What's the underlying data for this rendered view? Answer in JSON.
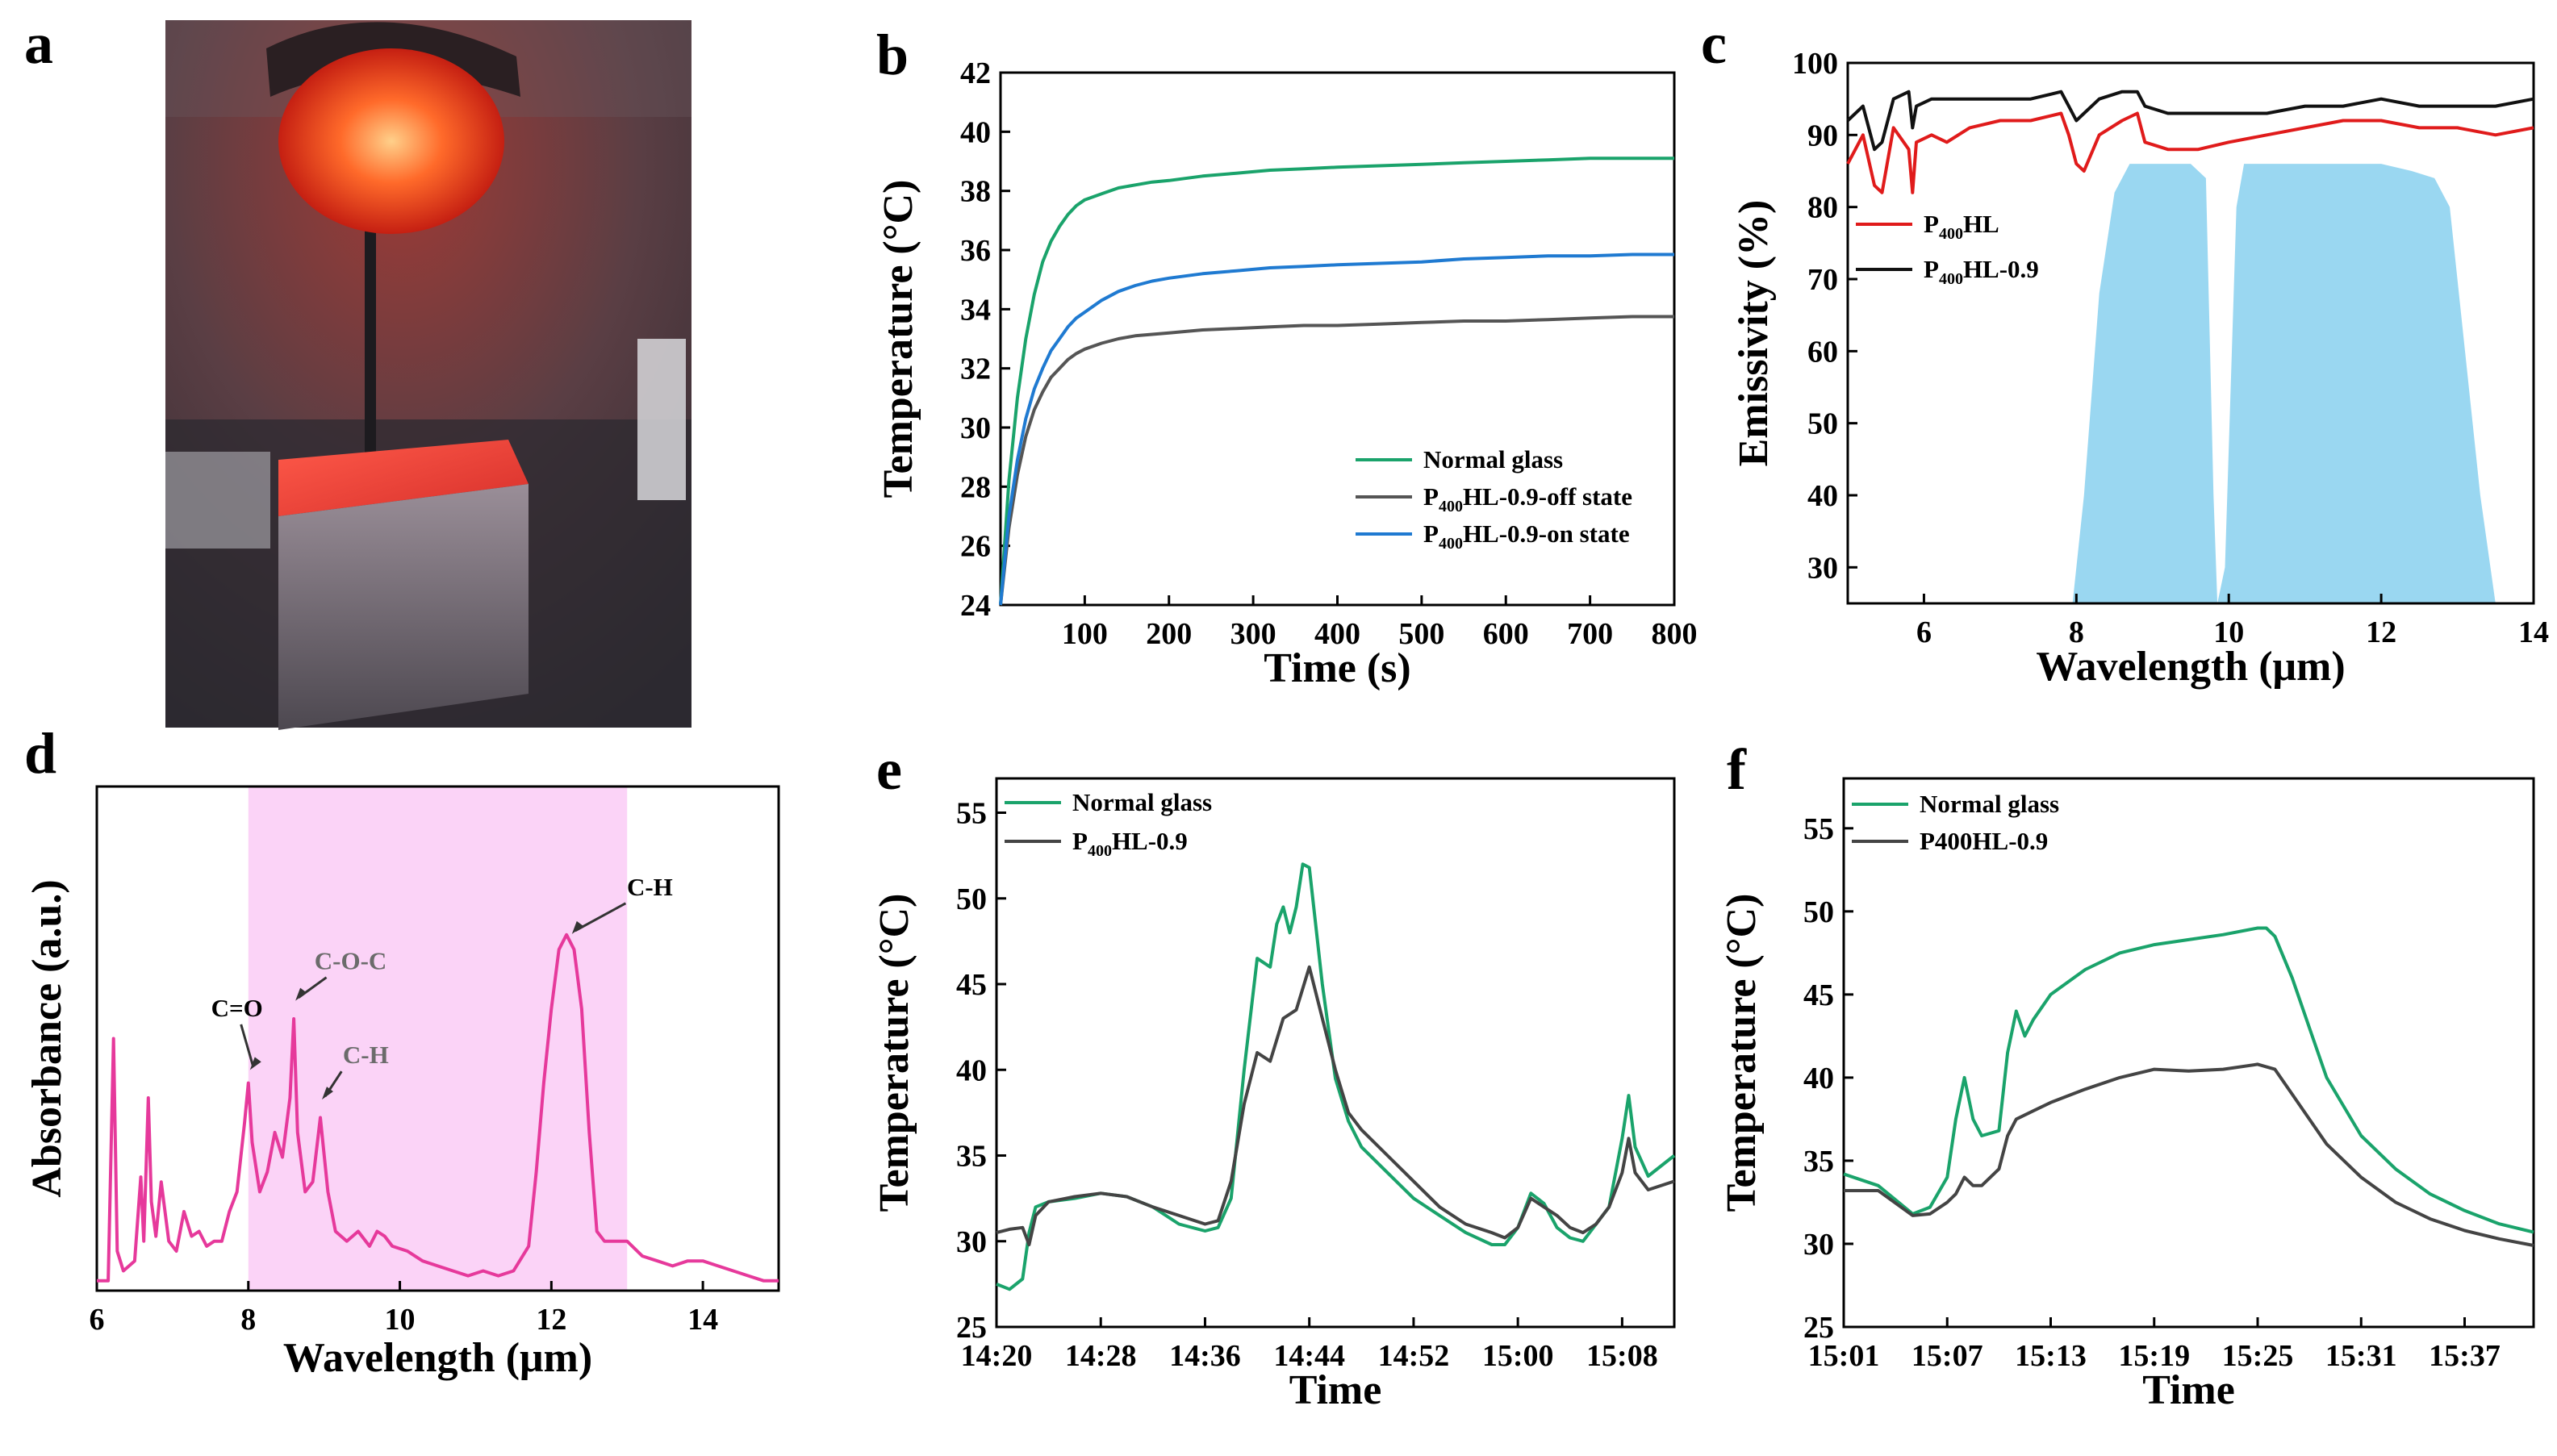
{
  "panels": {
    "a": {
      "letter": "a",
      "photo_caption": "",
      "colors": {
        "background": "#4a3b3c",
        "lamp": "#e8341c",
        "glow": "#ff6a3a",
        "foil": "#8e8c92"
      }
    },
    "b": {
      "letter": "b",
      "chart_kind": "line"
    },
    "c": {
      "letter": "c",
      "chart_kind": "line"
    },
    "d": {
      "letter": "d",
      "chart_kind": "line",
      "annotations": [
        {
          "label": "C=O",
          "x": 8.0,
          "y": 0.42,
          "label_x": 7.85,
          "label_y": 0.535,
          "color": "#000000"
        },
        {
          "label": "C-O-C",
          "x": 8.6,
          "y": 0.56,
          "label_x": 9.35,
          "label_y": 0.63,
          "color": "#6b6b6b"
        },
        {
          "label": "C-H",
          "x": 8.95,
          "y": 0.36,
          "label_x": 9.55,
          "label_y": 0.44,
          "color": "#6b6b6b"
        },
        {
          "label": "C-H",
          "x": 12.25,
          "y": 0.695,
          "label_x": 13.3,
          "label_y": 0.78,
          "color": "#000000"
        }
      ]
    },
    "e": {
      "letter": "e",
      "chart_kind": "line"
    },
    "f": {
      "letter": "f",
      "chart_kind": "line"
    }
  },
  "chart_data": [
    {
      "id": "b",
      "type": "line",
      "title": "",
      "xlabel": "Time (s)",
      "ylabel": "Temperature (°C)",
      "xlim": [
        0,
        800
      ],
      "ylim": [
        24,
        42
      ],
      "xticks": [
        100,
        200,
        300,
        400,
        500,
        600,
        700,
        800
      ],
      "yticks": [
        24,
        26,
        28,
        30,
        32,
        34,
        36,
        38,
        40,
        42
      ],
      "x": [
        0,
        10,
        20,
        30,
        40,
        50,
        60,
        70,
        80,
        90,
        100,
        120,
        140,
        160,
        180,
        200,
        240,
        280,
        320,
        360,
        400,
        450,
        500,
        550,
        600,
        650,
        700,
        750,
        800
      ],
      "legend_position": "bottom-right",
      "series": [
        {
          "name": "Normal glass",
          "sub": "",
          "prefix": "Normal glass",
          "suffix": "",
          "color": "#1aa36b",
          "values": [
            24.0,
            28.2,
            31.0,
            33.0,
            34.5,
            35.6,
            36.3,
            36.8,
            37.2,
            37.5,
            37.7,
            37.9,
            38.1,
            38.2,
            38.3,
            38.35,
            38.5,
            38.6,
            38.7,
            38.75,
            38.8,
            38.85,
            38.9,
            38.95,
            39.0,
            39.05,
            39.1,
            39.1,
            39.1
          ]
        },
        {
          "name": "P400HL-0.9-off state",
          "prefix": "P",
          "sub": "400",
          "suffix": "HL-0.9-off state",
          "color": "#555555",
          "values": [
            24.0,
            26.6,
            28.4,
            29.7,
            30.6,
            31.2,
            31.7,
            32.0,
            32.3,
            32.5,
            32.65,
            32.85,
            33.0,
            33.1,
            33.15,
            33.2,
            33.3,
            33.35,
            33.4,
            33.45,
            33.45,
            33.5,
            33.55,
            33.6,
            33.6,
            33.65,
            33.7,
            33.75,
            33.75
          ]
        },
        {
          "name": "P400HL-0.9-on state",
          "prefix": "P",
          "sub": "400",
          "suffix": "HL-0.9-on state",
          "color": "#1f7ad1",
          "values": [
            24.0,
            27.0,
            28.9,
            30.3,
            31.3,
            32.0,
            32.6,
            33.0,
            33.4,
            33.7,
            33.9,
            34.3,
            34.6,
            34.8,
            34.95,
            35.05,
            35.2,
            35.3,
            35.4,
            35.45,
            35.5,
            35.55,
            35.6,
            35.7,
            35.75,
            35.8,
            35.8,
            35.85,
            35.85
          ]
        }
      ]
    },
    {
      "id": "c",
      "type": "line",
      "title": "",
      "xlabel": "Wavelength (μm)",
      "ylabel": "Emissivity (%)",
      "xlim": [
        5,
        14
      ],
      "ylim": [
        25,
        100
      ],
      "xticks": [
        6,
        8,
        10,
        12,
        14
      ],
      "yticks": [
        30,
        40,
        50,
        60,
        70,
        80,
        90,
        100
      ],
      "legend_position": "center-left",
      "atmospheric_window": {
        "color": "#8fd3f0",
        "x": [
          7.95,
          8.1,
          8.3,
          8.5,
          8.7,
          8.9,
          9.2,
          9.5,
          9.7,
          9.8,
          9.85,
          9.95,
          10.1,
          10.2,
          10.4,
          10.8,
          11.2,
          11.6,
          12.0,
          12.4,
          12.7,
          12.9,
          13.1,
          13.3,
          13.5
        ],
        "values": [
          25,
          40,
          68,
          82,
          86,
          86,
          86,
          86,
          84,
          40,
          25,
          30,
          80,
          86,
          86,
          86,
          86,
          86,
          86,
          85,
          84,
          80,
          60,
          40,
          25
        ]
      },
      "series": [
        {
          "name": "P400HL",
          "prefix": "P",
          "sub": "400",
          "suffix": "HL",
          "color": "#e01b1b",
          "x": [
            5.0,
            5.2,
            5.35,
            5.45,
            5.6,
            5.8,
            5.85,
            5.9,
            6.1,
            6.3,
            6.6,
            7.0,
            7.4,
            7.8,
            7.9,
            8.0,
            8.1,
            8.3,
            8.6,
            8.8,
            8.9,
            9.2,
            9.6,
            10.0,
            10.5,
            11.0,
            11.5,
            12.0,
            12.5,
            13.0,
            13.5,
            14.0
          ],
          "values": [
            86,
            90,
            83,
            82,
            91,
            88,
            82,
            89,
            90,
            89,
            91,
            92,
            92,
            93,
            90,
            86,
            85,
            90,
            92,
            93,
            89,
            88,
            88,
            89,
            90,
            91,
            92,
            92,
            91,
            91,
            90,
            91
          ]
        },
        {
          "name": "P400HL-0.9",
          "prefix": "P",
          "sub": "400",
          "suffix": "HL-0.9",
          "color": "#111111",
          "x": [
            5.0,
            5.2,
            5.35,
            5.45,
            5.6,
            5.8,
            5.85,
            5.9,
            6.1,
            6.3,
            6.6,
            7.0,
            7.4,
            7.8,
            7.9,
            8.0,
            8.1,
            8.3,
            8.6,
            8.8,
            8.9,
            9.2,
            9.6,
            10.0,
            10.5,
            11.0,
            11.5,
            12.0,
            12.5,
            13.0,
            13.5,
            14.0
          ],
          "values": [
            92,
            94,
            88,
            89,
            95,
            96,
            91,
            94,
            95,
            95,
            95,
            95,
            95,
            96,
            94,
            92,
            93,
            95,
            96,
            96,
            94,
            93,
            93,
            93,
            93,
            94,
            94,
            95,
            94,
            94,
            94,
            95
          ]
        }
      ]
    },
    {
      "id": "d",
      "type": "line",
      "title": "",
      "xlabel": "Wavelength (μm)",
      "ylabel": "Absorbance (a.u.)",
      "xlim": [
        6,
        15
      ],
      "ylim": [
        -0.02,
        1.0
      ],
      "xticks": [
        6,
        8,
        10,
        12,
        14
      ],
      "yticks": [],
      "shaded_band": {
        "from": 8,
        "to": 13,
        "color": "#fbd3f7"
      },
      "series": [
        {
          "name": "Absorbance",
          "color": "#e6399b",
          "x": [
            6.0,
            6.15,
            6.22,
            6.27,
            6.35,
            6.5,
            6.58,
            6.62,
            6.68,
            6.72,
            6.78,
            6.85,
            6.95,
            7.05,
            7.15,
            7.25,
            7.35,
            7.45,
            7.55,
            7.65,
            7.75,
            7.85,
            7.95,
            8.0,
            8.05,
            8.15,
            8.25,
            8.35,
            8.45,
            8.55,
            8.6,
            8.65,
            8.75,
            8.85,
            8.95,
            9.05,
            9.15,
            9.3,
            9.45,
            9.6,
            9.7,
            9.8,
            9.9,
            10.1,
            10.3,
            10.5,
            10.7,
            10.9,
            11.1,
            11.3,
            11.5,
            11.7,
            11.8,
            11.9,
            12.0,
            12.1,
            12.2,
            12.3,
            12.4,
            12.5,
            12.6,
            12.7,
            12.8,
            13.0,
            13.2,
            13.4,
            13.6,
            13.8,
            14.0,
            14.2,
            14.4,
            14.6,
            14.8,
            15.0
          ],
          "values": [
            0.0,
            0.0,
            0.49,
            0.06,
            0.02,
            0.04,
            0.21,
            0.08,
            0.37,
            0.16,
            0.09,
            0.2,
            0.08,
            0.06,
            0.14,
            0.09,
            0.1,
            0.07,
            0.08,
            0.08,
            0.14,
            0.18,
            0.32,
            0.4,
            0.28,
            0.18,
            0.22,
            0.3,
            0.25,
            0.37,
            0.53,
            0.3,
            0.18,
            0.2,
            0.33,
            0.18,
            0.1,
            0.08,
            0.1,
            0.07,
            0.1,
            0.09,
            0.07,
            0.06,
            0.04,
            0.03,
            0.02,
            0.01,
            0.02,
            0.01,
            0.02,
            0.07,
            0.22,
            0.4,
            0.55,
            0.67,
            0.7,
            0.67,
            0.55,
            0.3,
            0.1,
            0.08,
            0.08,
            0.08,
            0.05,
            0.04,
            0.03,
            0.04,
            0.04,
            0.03,
            0.02,
            0.01,
            0.0,
            0.0
          ]
        }
      ]
    },
    {
      "id": "e",
      "type": "line",
      "title": "",
      "xlabel": "Time",
      "ylabel": "Temperature (°C)",
      "xlim": [
        0,
        52
      ],
      "ylim": [
        25,
        57
      ],
      "xticks": [
        0,
        8,
        16,
        24,
        32,
        40,
        48
      ],
      "xtick_labels": [
        "14:20",
        "14:28",
        "14:36",
        "14:44",
        "14:52",
        "15:00",
        "15:08"
      ],
      "yticks": [
        25,
        30,
        35,
        40,
        45,
        50,
        55
      ],
      "legend_position": "top-left",
      "series": [
        {
          "name": "Normal glass",
          "prefix": "Normal glass",
          "sub": "",
          "suffix": "",
          "color": "#1aa36b",
          "x": [
            0,
            1,
            2,
            2.5,
            3,
            4,
            6,
            8,
            10,
            12,
            14,
            16,
            17,
            18,
            19,
            20,
            21,
            21.5,
            22,
            22.5,
            23,
            23.5,
            24,
            25,
            26,
            27,
            28,
            30,
            32,
            34,
            36,
            38,
            39,
            40,
            41,
            42,
            43,
            44,
            45,
            46,
            47,
            48,
            48.5,
            49,
            50,
            52
          ],
          "values": [
            27.5,
            27.2,
            27.8,
            30.5,
            32.0,
            32.3,
            32.5,
            32.8,
            32.6,
            32.0,
            31.0,
            30.6,
            30.8,
            32.5,
            40.0,
            46.5,
            46.0,
            48.5,
            49.5,
            48.0,
            49.5,
            52.0,
            51.8,
            45.0,
            39.5,
            37.0,
            35.5,
            34.0,
            32.5,
            31.5,
            30.5,
            29.8,
            29.8,
            30.8,
            32.8,
            32.2,
            30.8,
            30.2,
            30.0,
            31.0,
            32.0,
            36.0,
            38.5,
            35.5,
            33.8,
            35.0
          ]
        },
        {
          "name": "P400HL-0.9",
          "prefix": "P",
          "sub": "400",
          "suffix": "HL-0.9",
          "color": "#444444",
          "x": [
            0,
            1,
            2,
            2.5,
            3,
            4,
            6,
            8,
            10,
            12,
            14,
            16,
            17,
            18,
            19,
            20,
            21,
            22,
            23,
            24,
            25,
            26,
            27,
            28,
            30,
            32,
            34,
            36,
            38,
            39,
            40,
            41,
            42,
            43,
            44,
            45,
            46,
            47,
            48,
            48.5,
            49,
            50,
            52
          ],
          "values": [
            30.5,
            30.7,
            30.8,
            29.8,
            31.5,
            32.3,
            32.6,
            32.8,
            32.6,
            32.0,
            31.5,
            31.0,
            31.2,
            33.5,
            38.0,
            41.0,
            40.5,
            43.0,
            43.5,
            46.0,
            43.0,
            40.0,
            37.5,
            36.5,
            35.0,
            33.5,
            32.0,
            31.0,
            30.5,
            30.2,
            30.8,
            32.5,
            32.0,
            31.5,
            30.8,
            30.5,
            31.0,
            32.0,
            34.0,
            36.0,
            34.0,
            33.0,
            33.5
          ]
        }
      ]
    },
    {
      "id": "f",
      "type": "line",
      "title": "",
      "xlabel": "Time",
      "ylabel": "Temperature (°C)",
      "xlim": [
        0,
        40
      ],
      "ylim": [
        25,
        58
      ],
      "xticks": [
        0,
        6,
        12,
        18,
        24,
        30,
        36
      ],
      "xtick_labels": [
        "15:01",
        "15:07",
        "15:13",
        "15:19",
        "15:25",
        "15:31",
        "15:37"
      ],
      "yticks": [
        25,
        30,
        35,
        40,
        45,
        50,
        55
      ],
      "legend_position": "top-left",
      "series": [
        {
          "name": "Normal glass",
          "prefix": "Normal glass",
          "sub": "",
          "suffix": "",
          "color": "#1aa36b",
          "x": [
            0,
            2,
            4,
            5,
            6,
            6.5,
            7,
            7.5,
            8,
            9,
            9.5,
            10,
            10.5,
            11,
            12,
            14,
            16,
            18,
            20,
            22,
            24,
            24.5,
            25,
            26,
            27,
            28,
            30,
            32,
            34,
            36,
            38,
            40
          ],
          "values": [
            34.2,
            33.5,
            31.8,
            32.2,
            34.0,
            37.5,
            40.0,
            37.5,
            36.5,
            36.8,
            41.5,
            44.0,
            42.5,
            43.5,
            45.0,
            46.5,
            47.5,
            48.0,
            48.3,
            48.6,
            49.0,
            49.0,
            48.5,
            46.0,
            43.0,
            40.0,
            36.5,
            34.5,
            33.0,
            32.0,
            31.2,
            30.7
          ]
        },
        {
          "name": "P400HL-0.9",
          "prefix": "P400HL-0.9",
          "sub": "",
          "suffix": "",
          "color": "#444444",
          "x": [
            0,
            2,
            4,
            5,
            6,
            6.5,
            7,
            7.5,
            8,
            9,
            9.5,
            10,
            11,
            12,
            14,
            16,
            18,
            20,
            22,
            24,
            25,
            26,
            27,
            28,
            30,
            32,
            34,
            36,
            38,
            40
          ],
          "values": [
            33.2,
            33.2,
            31.7,
            31.8,
            32.5,
            33.0,
            34.0,
            33.5,
            33.5,
            34.5,
            36.5,
            37.5,
            38.0,
            38.5,
            39.3,
            40.0,
            40.5,
            40.4,
            40.5,
            40.8,
            40.5,
            39.0,
            37.5,
            36.0,
            34.0,
            32.5,
            31.5,
            30.8,
            30.3,
            29.9
          ]
        }
      ]
    }
  ]
}
